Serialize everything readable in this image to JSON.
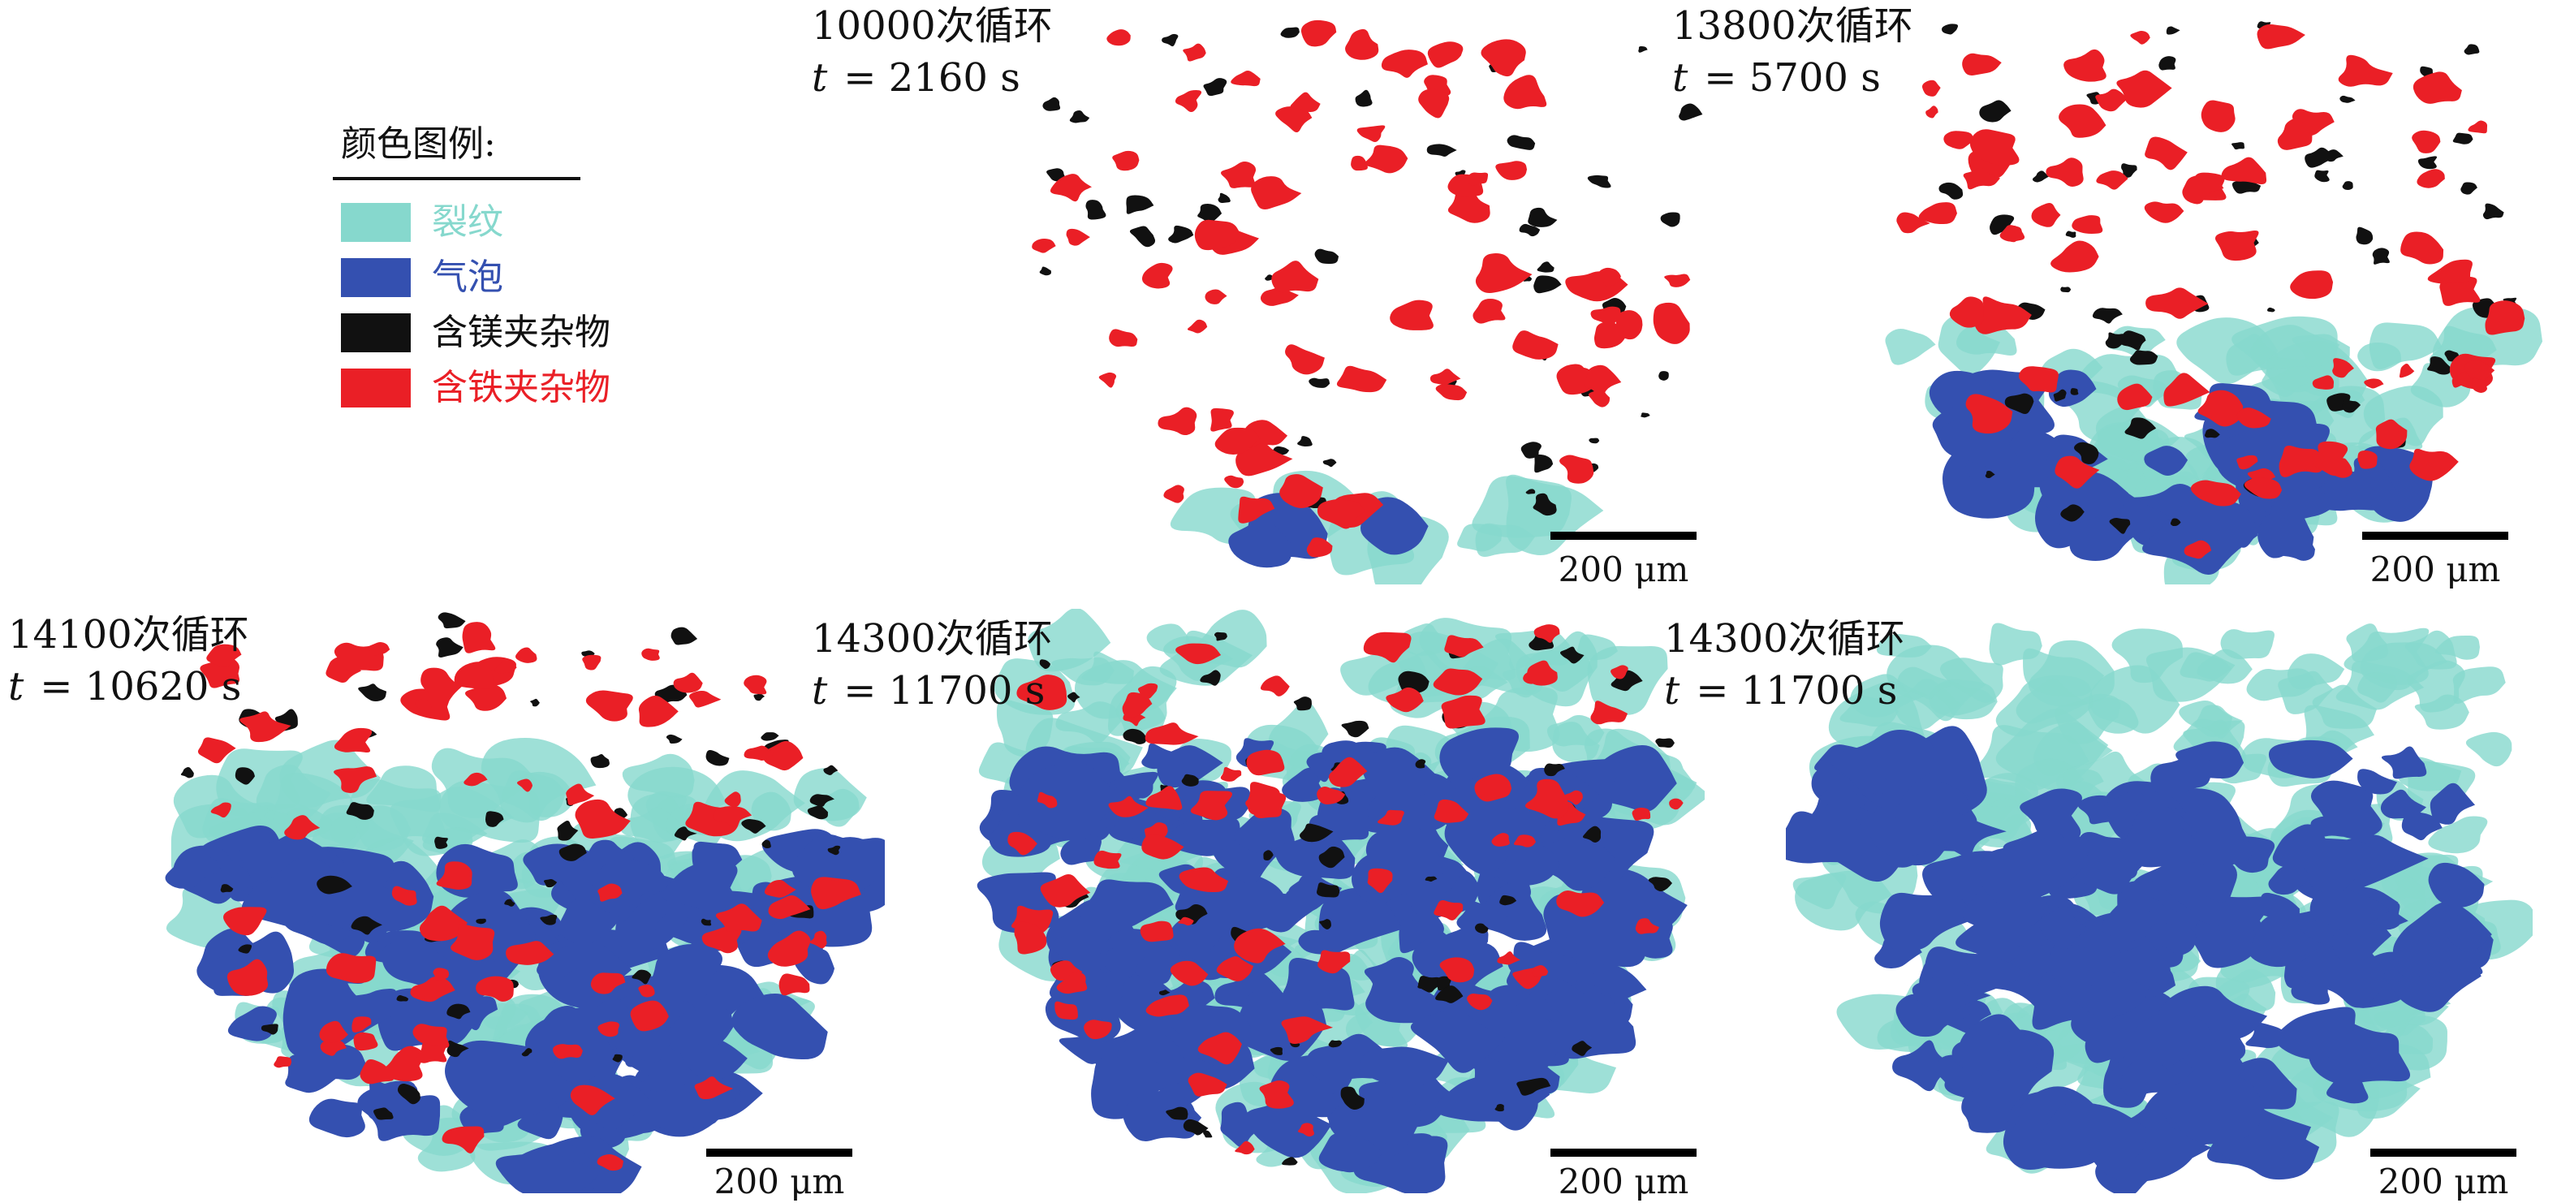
{
  "legend": {
    "title": "颜色图例:",
    "items": [
      {
        "label": "裂纹",
        "color": "#86d8cd"
      },
      {
        "label": "气泡",
        "color": "#3450b0"
      },
      {
        "label": "含镁夹杂物",
        "color": "#111111"
      },
      {
        "label": "含铁夹杂物",
        "color": "#ea1f26"
      }
    ]
  },
  "panels": [
    {
      "cycles": "10000次循环",
      "time_prefix": "t",
      "time_value": "= 2160 s",
      "scale": "200 μm",
      "crack": 0.15,
      "bubble": 0.05
    },
    {
      "cycles": "13800次循环",
      "time_prefix": "t",
      "time_value": "= 5700 s",
      "scale": "200 μm",
      "crack": 0.45,
      "bubble": 0.2
    },
    {
      "cycles": "14100次循环",
      "time_prefix": "t",
      "time_value": "= 10620 s",
      "scale": "200 μm",
      "crack": 0.75,
      "bubble": 0.6
    },
    {
      "cycles": "14300次循环",
      "time_prefix": "t",
      "time_value": "= 11700 s",
      "scale": "200 μm",
      "crack": 1.0,
      "bubble": 0.75
    },
    {
      "cycles": "14300次循环",
      "time_prefix": "t",
      "time_value": "= 11700 s",
      "scale": "200 μm",
      "crack": 1.0,
      "bubble": 0.75
    }
  ]
}
